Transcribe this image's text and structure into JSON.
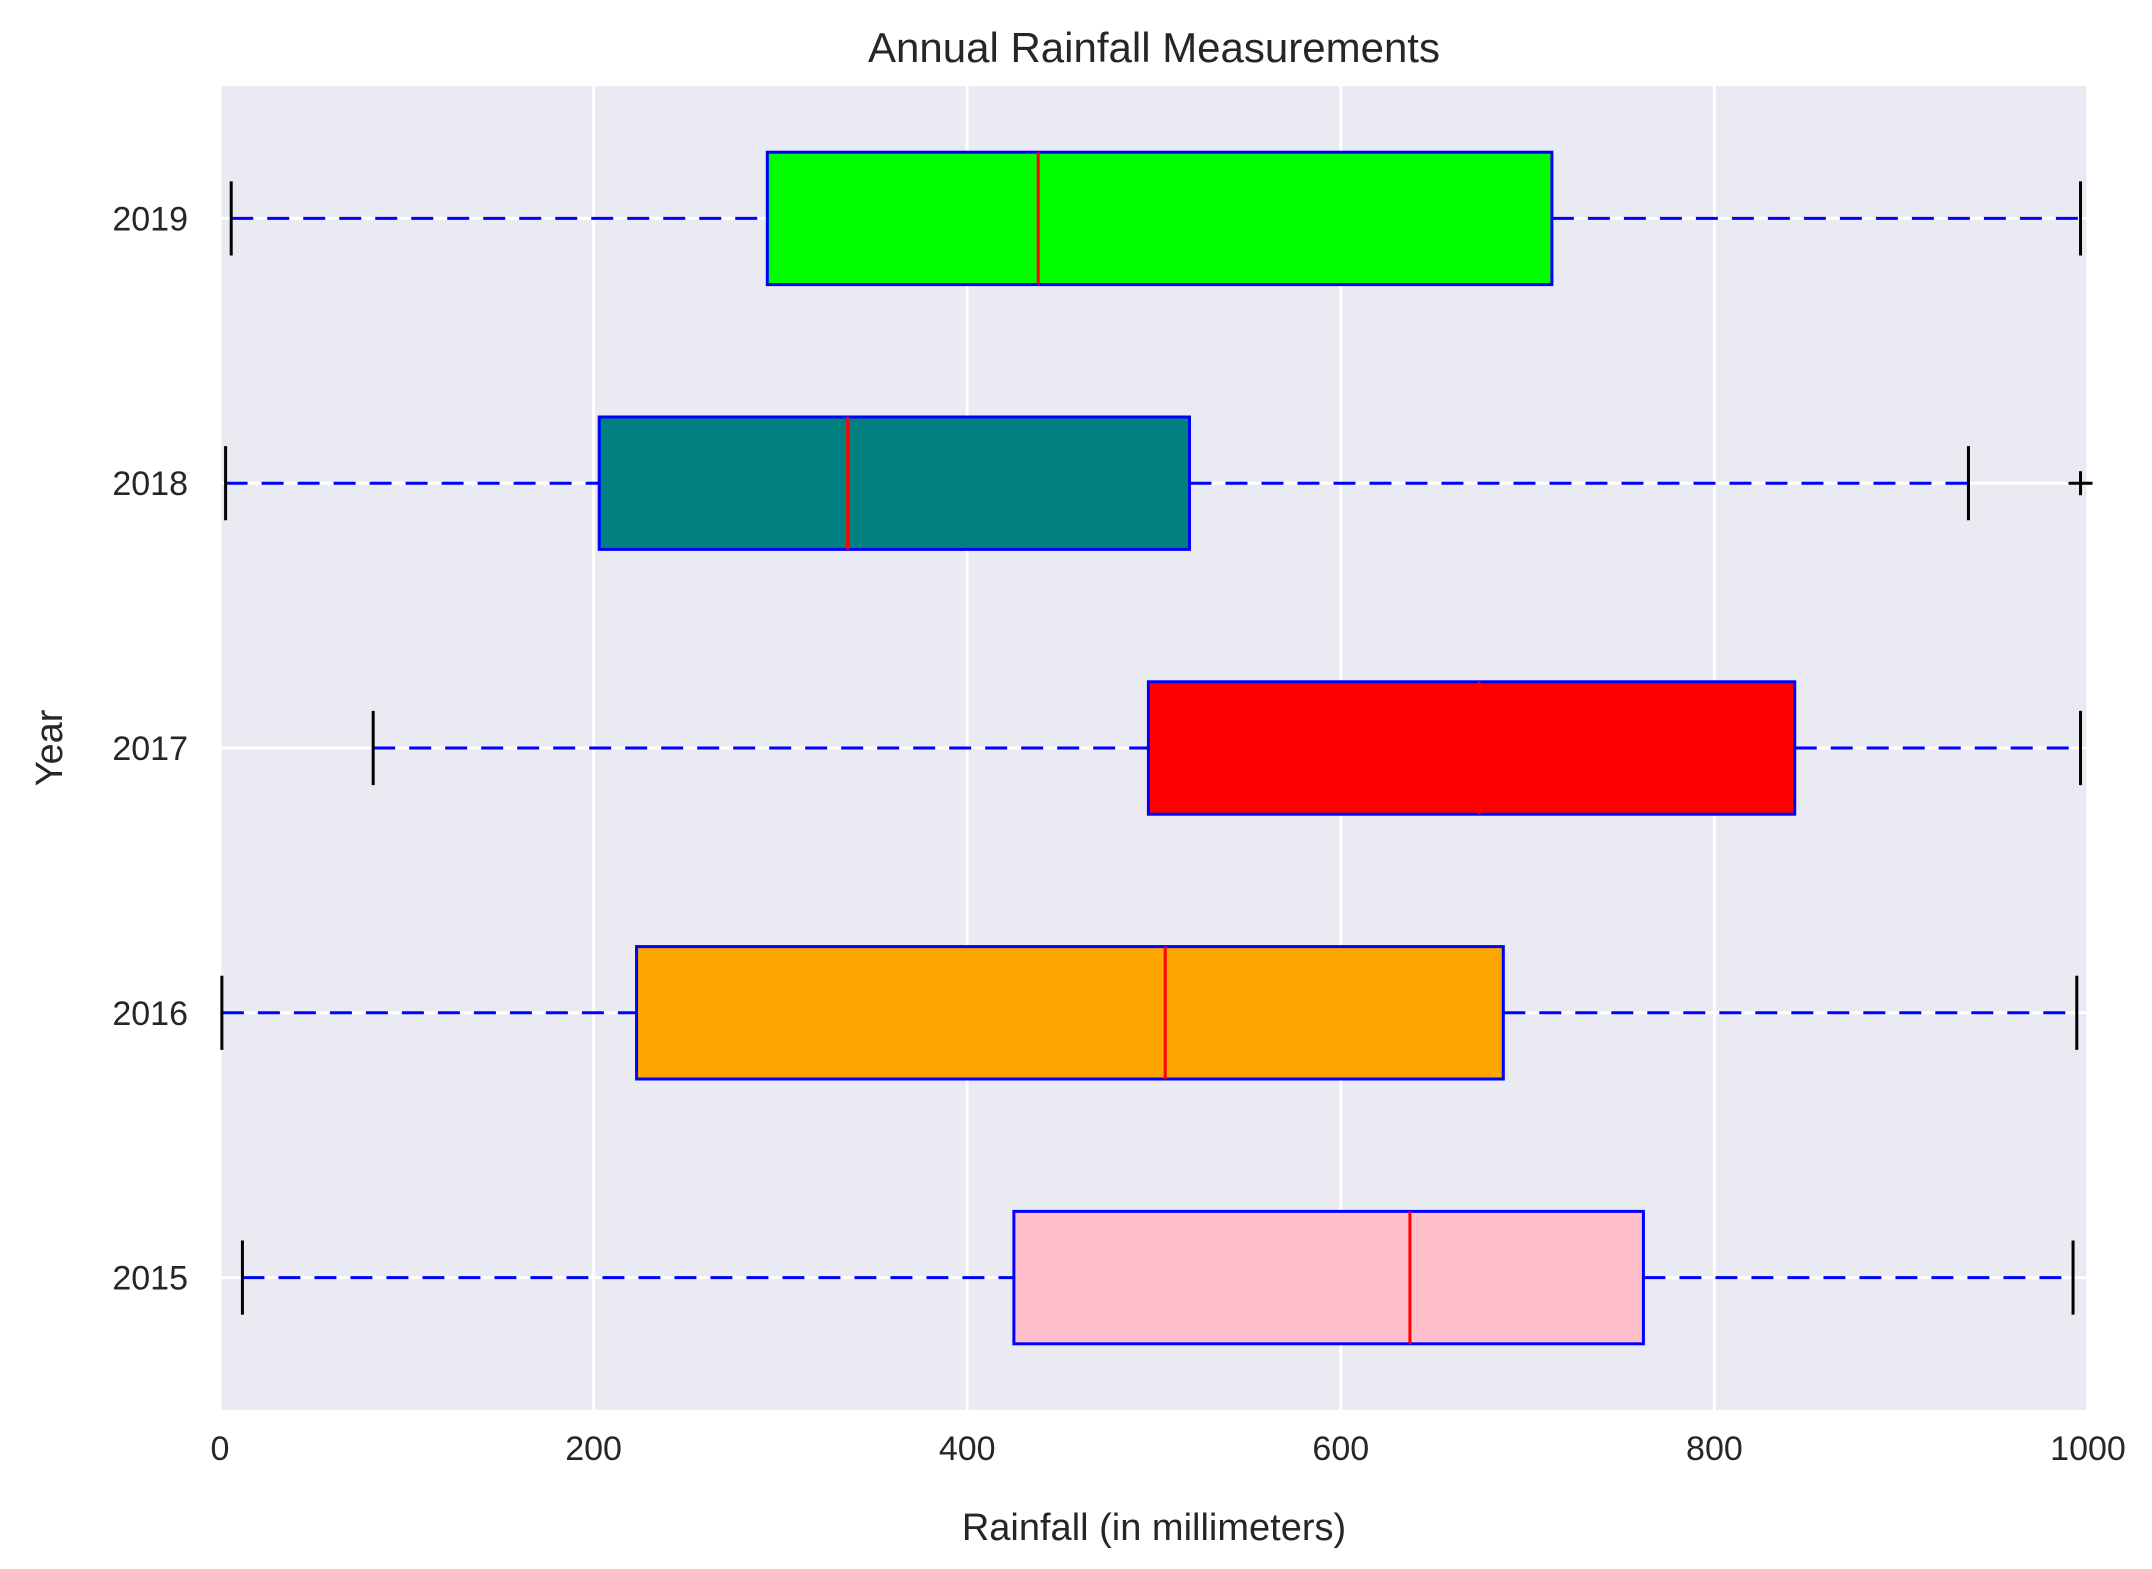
{
  "chart_data": {
    "type": "boxplot",
    "orientation": "horizontal",
    "title": "Annual Rainfall Measurements",
    "xlabel": "Rainfall (in millimeters)",
    "ylabel": "Year",
    "xlim": [
      0,
      1000
    ],
    "xticks": [
      0,
      200,
      400,
      600,
      800,
      1000
    ],
    "categories": [
      "2015",
      "2016",
      "2017",
      "2018",
      "2019"
    ],
    "series": [
      {
        "category": "2015",
        "color": "#ffc0cb",
        "whisker_low": 12,
        "q1": 425,
        "median": 637,
        "q3": 762,
        "whisker_high": 992,
        "outliers": []
      },
      {
        "category": "2016",
        "color": "#ffa500",
        "whisker_low": 1,
        "q1": 223,
        "median": 506,
        "q3": 687,
        "whisker_high": 994,
        "outliers": []
      },
      {
        "category": "2017",
        "color": "#ff0000",
        "whisker_low": 82,
        "q1": 497,
        "median": 674,
        "q3": 843,
        "whisker_high": 996,
        "outliers": []
      },
      {
        "category": "2018",
        "color": "#008080",
        "whisker_low": 3,
        "q1": 203,
        "median": 336,
        "q3": 519,
        "whisker_high": 936,
        "outliers": [
          996
        ]
      },
      {
        "category": "2019",
        "color": "#00ff00",
        "whisker_low": 6,
        "q1": 293,
        "median": 438,
        "q3": 713,
        "whisker_high": 996,
        "outliers": []
      }
    ],
    "grid": true,
    "box_edge_color": "#0000ff",
    "median_color": "#ff0000",
    "whisker_color": "#0000ff",
    "background_color": "#eaeaf2"
  }
}
